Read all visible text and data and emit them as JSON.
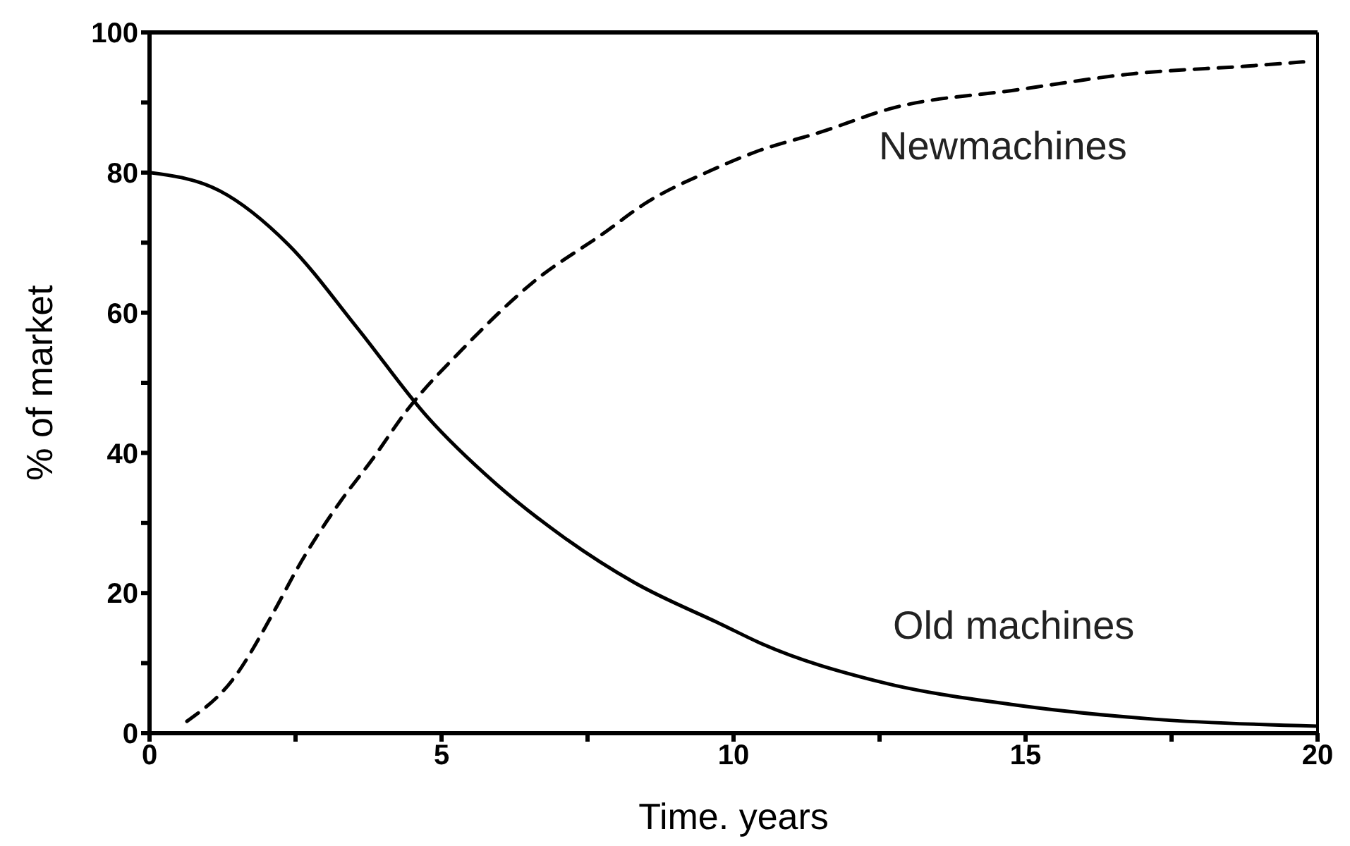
{
  "chart_data": {
    "type": "line",
    "xlabel": "Time. years",
    "ylabel": "% of market",
    "xlim": [
      0,
      20
    ],
    "ylim": [
      0,
      100
    ],
    "xticks": [
      0,
      {
        "value": 2.5,
        "label": null
      },
      5,
      {
        "value": 7.5,
        "label": null
      },
      10,
      {
        "value": 12.5,
        "label": null
      },
      15,
      {
        "value": 17.5,
        "label": null
      },
      20
    ],
    "yticks": [
      0,
      {
        "value": 10,
        "label": null
      },
      20,
      {
        "value": 30,
        "label": null
      },
      40,
      {
        "value": 50,
        "label": null
      },
      60,
      {
        "value": 70,
        "label": null
      },
      80,
      {
        "value": 90,
        "label": null
      },
      100
    ],
    "grid": false,
    "legend": false,
    "marker": "none",
    "series": [
      {
        "color": "#000000",
        "line_style": "solid",
        "x": [
          0,
          1.2,
          2.38,
          3.57,
          4.75,
          5.93,
          7.12,
          8.3,
          9.8,
          10.5,
          12.47,
          14.85,
          17.2,
          20
        ],
        "values": [
          80,
          77.4,
          69.7,
          57.7,
          45.2,
          35.6,
          27.8,
          21.5,
          15.5,
          12.7,
          7.4,
          4.0,
          2.0,
          1.0
        ]
      },
      {
        "color": "#000000",
        "line_style": "dashed",
        "x": [
          0.64,
          1.43,
          2.14,
          2.53,
          3.28,
          3.8,
          4.42,
          5.37,
          6.56,
          7.82,
          8.45,
          9.64,
          10.36,
          11.5,
          12.72,
          14.85,
          16.83,
          18.8,
          19.76
        ],
        "values": [
          1.7,
          7.7,
          17.5,
          23.5,
          33.2,
          38.9,
          46.2,
          54.9,
          64.3,
          71.6,
          75.4,
          80.4,
          82.9,
          85.8,
          89.2,
          91.8,
          94.1,
          95.2,
          95.8
        ]
      }
    ],
    "annotations": [
      "Newmachines",
      "Old machines"
    ]
  }
}
